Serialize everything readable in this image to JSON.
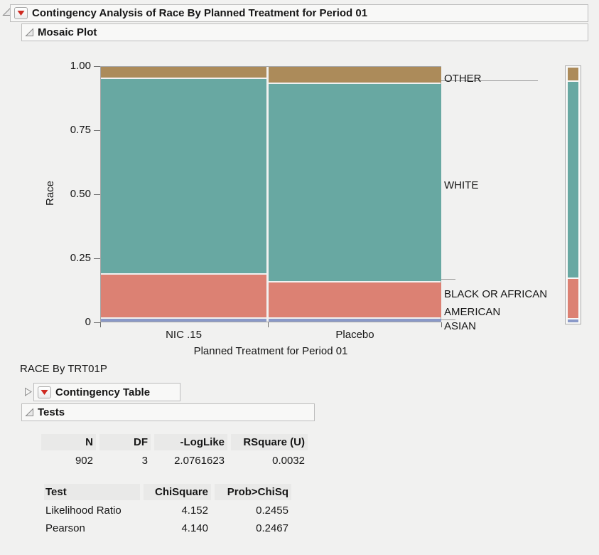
{
  "outline": {
    "main_title": "Contingency Analysis of Race By Planned Treatment for Period 01",
    "mosaic_title": "Mosaic Plot",
    "subtitle": "RACE By TRT01P",
    "contingency_title": "Contingency Table",
    "tests_title": "Tests"
  },
  "icons": {
    "open_disclosure": "open-disclosure-triangle",
    "collapsed_disclosure": "collapsed-disclosure-triangle",
    "red_triangle_menu": "red-triangle-menu"
  },
  "chart_data": {
    "type": "mosaic",
    "title": "Mosaic Plot",
    "xlabel": "Planned Treatment for Period 01",
    "ylabel": "Race",
    "x_categories": [
      "NIC .15",
      "Placebo"
    ],
    "y_categories_bottom_to_top": [
      "ASIAN",
      "BLACK OR AFRICAN AMERICAN",
      "WHITE",
      "OTHER"
    ],
    "y_tick_values": [
      1.0,
      0.75,
      0.5,
      0.25,
      0
    ],
    "y_tick_labels": [
      "1.00",
      "0.75",
      "0.50",
      "0.25",
      "0"
    ],
    "columns": [
      {
        "label": "NIC .15",
        "x_share": 0.49,
        "stacks_bottom_to_top": [
          0.018,
          0.172,
          0.763,
          0.047
        ]
      },
      {
        "label": "Placebo",
        "x_share": 0.51,
        "stacks_bottom_to_top": [
          0.018,
          0.14,
          0.774,
          0.068
        ]
      }
    ],
    "legend_marginal_bottom_to_top": [
      0.018,
      0.157,
      0.77,
      0.055
    ],
    "colors": {
      "ASIAN": "#8A99C8",
      "BLACK OR AFRICAN AMERICAN": "#DC8173",
      "WHITE": "#68A8A2",
      "OTHER": "#AC8B5A"
    },
    "right_label_lines": [
      "OTHER",
      "WHITE",
      "BLACK OR AFRICAN",
      "AMERICAN",
      "ASIAN"
    ],
    "axis_range": [
      0,
      1
    ],
    "grid": false,
    "legend_position": "right-strip"
  },
  "summary_table": {
    "headers": [
      "N",
      "DF",
      "-LogLike",
      "RSquare (U)"
    ],
    "rows": [
      [
        "902",
        "3",
        "2.0761623",
        "0.0032"
      ]
    ]
  },
  "tests_table": {
    "headers": [
      "Test",
      "ChiSquare",
      "Prob>ChiSq"
    ],
    "rows": [
      [
        "Likelihood Ratio",
        "4.152",
        "0.2455"
      ],
      [
        "Pearson",
        "4.140",
        "0.2467"
      ]
    ]
  }
}
